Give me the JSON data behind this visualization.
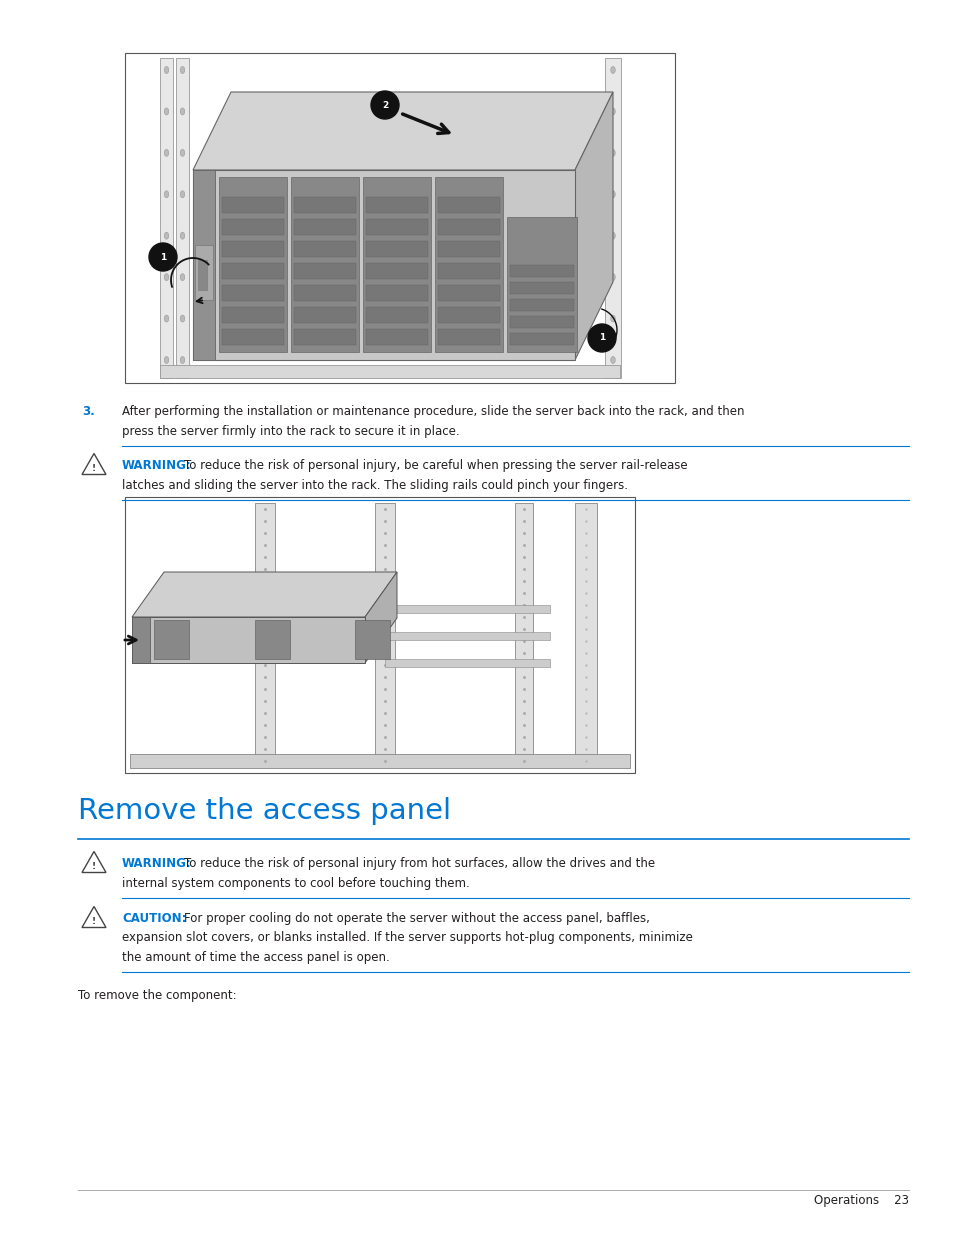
{
  "bg_color": "#ffffff",
  "page_width": 9.54,
  "page_height": 12.35,
  "blue_color": "#0078d4",
  "text_color": "#231f20",
  "warning_color": "#0078d4",
  "caution_color": "#0078d4",
  "step3_line1": "After performing the installation or maintenance procedure, slide the server back into the rack, and then",
  "step3_line2": "press the server firmly into the rack to secure it in place.",
  "warn1_bold": "WARNING:",
  "warn1_rest1": "  To reduce the risk of personal injury, be careful when pressing the server rail-release",
  "warn1_rest2": "latches and sliding the server into the rack. The sliding rails could pinch your fingers.",
  "section_title": "Remove the access panel",
  "warn2_bold": "WARNING:",
  "warn2_rest1": "  To reduce the risk of personal injury from hot surfaces, allow the drives and the",
  "warn2_rest2": "internal system components to cool before touching them.",
  "caut_bold": "CAUTION:",
  "caut_rest1": "  For proper cooling do not operate the server without the access panel, baffles,",
  "caut_rest2": "expansion slot covers, or blanks installed. If the server supports hot-plug components, minimize",
  "caut_rest3": "the amount of time the access panel is open.",
  "to_remove": "To remove the component:",
  "footer": "Operations    23"
}
